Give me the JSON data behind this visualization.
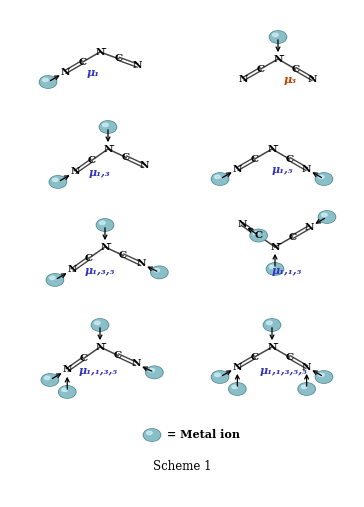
{
  "title": "Scheme 1",
  "mu_labels": [
    "μ₁",
    "μ₃",
    "μ₁,₃",
    "μ₁,₅",
    "μ₁,₃,₅",
    "μ₁,₁,₅",
    "μ₁,₁,₃,₅",
    "μ₁,₁,₃,₅,₅"
  ],
  "mu_colors": [
    "#3333bb",
    "#bb4400",
    "#3333bb",
    "#3333bb",
    "#3333bb",
    "#3333bb",
    "#3333bb",
    "#3333bb"
  ],
  "bg": "#ffffff",
  "metal_main": "#8abfc8",
  "metal_dark": "#5a8f98",
  "metal_hi": "#d0eef5",
  "bond_col": "#444444",
  "atom_col": "#000000"
}
